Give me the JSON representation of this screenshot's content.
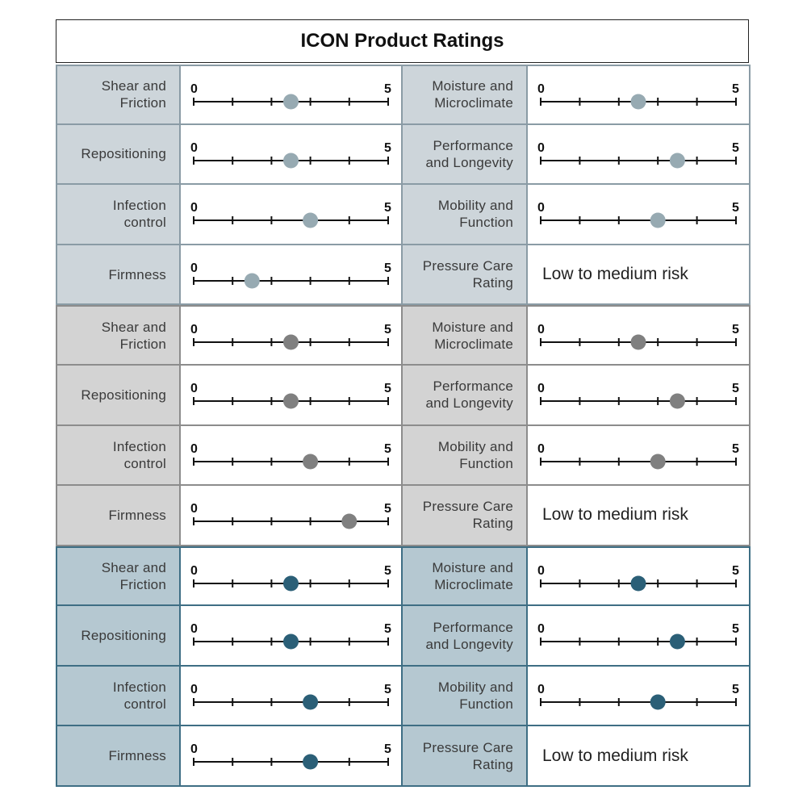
{
  "title": "ICON Product Ratings",
  "scale": {
    "min_label": "0",
    "max_label": "5",
    "min": 0,
    "max": 5,
    "ticks": [
      0,
      1,
      2,
      3,
      4,
      5
    ]
  },
  "groups": [
    {
      "name": "group-1",
      "bg": "#cdd5da",
      "border": "#8a9ba5",
      "dot": "#97aab2",
      "rows": [
        {
          "left_label": "Shear and\nFriction",
          "left_value": 2.5,
          "right_label": "Moisture and\nMicroclimate",
          "right_value": 2.5
        },
        {
          "left_label": "Repositioning",
          "left_value": 2.5,
          "right_label": "Performance\nand Longevity",
          "right_value": 3.5
        },
        {
          "left_label": "Infection\ncontrol",
          "left_value": 3.0,
          "right_label": "Mobility and\nFunction",
          "right_value": 3.0
        },
        {
          "left_label": "Firmness",
          "left_value": 1.5,
          "right_label": "Pressure Care\nRating",
          "right_text": "Low to medium risk"
        }
      ]
    },
    {
      "name": "group-2",
      "bg": "#d3d3d3",
      "border": "#8c8c8c",
      "dot": "#808080",
      "rows": [
        {
          "left_label": "Shear and\nFriction",
          "left_value": 2.5,
          "right_label": "Moisture and\nMicroclimate",
          "right_value": 2.5
        },
        {
          "left_label": "Repositioning",
          "left_value": 2.5,
          "right_label": "Performance\nand Longevity",
          "right_value": 3.5
        },
        {
          "left_label": "Infection\ncontrol",
          "left_value": 3.0,
          "right_label": "Mobility and\nFunction",
          "right_value": 3.0
        },
        {
          "left_label": "Firmness",
          "left_value": 4.0,
          "right_label": "Pressure Care\nRating",
          "right_text": "Low to medium risk"
        }
      ]
    },
    {
      "name": "group-3",
      "bg": "#b5c8d1",
      "border": "#3e6e84",
      "dot": "#2b5f77",
      "rows": [
        {
          "left_label": "Shear and\nFriction",
          "left_value": 2.5,
          "right_label": "Moisture and\nMicroclimate",
          "right_value": 2.5
        },
        {
          "left_label": "Repositioning",
          "left_value": 2.5,
          "right_label": "Performance\nand Longevity",
          "right_value": 3.5
        },
        {
          "left_label": "Infection\ncontrol",
          "left_value": 3.0,
          "right_label": "Mobility and\nFunction",
          "right_value": 3.0
        },
        {
          "left_label": "Firmness",
          "left_value": 3.0,
          "right_label": "Pressure Care\nRating",
          "right_text": "Low to medium risk"
        }
      ]
    }
  ]
}
